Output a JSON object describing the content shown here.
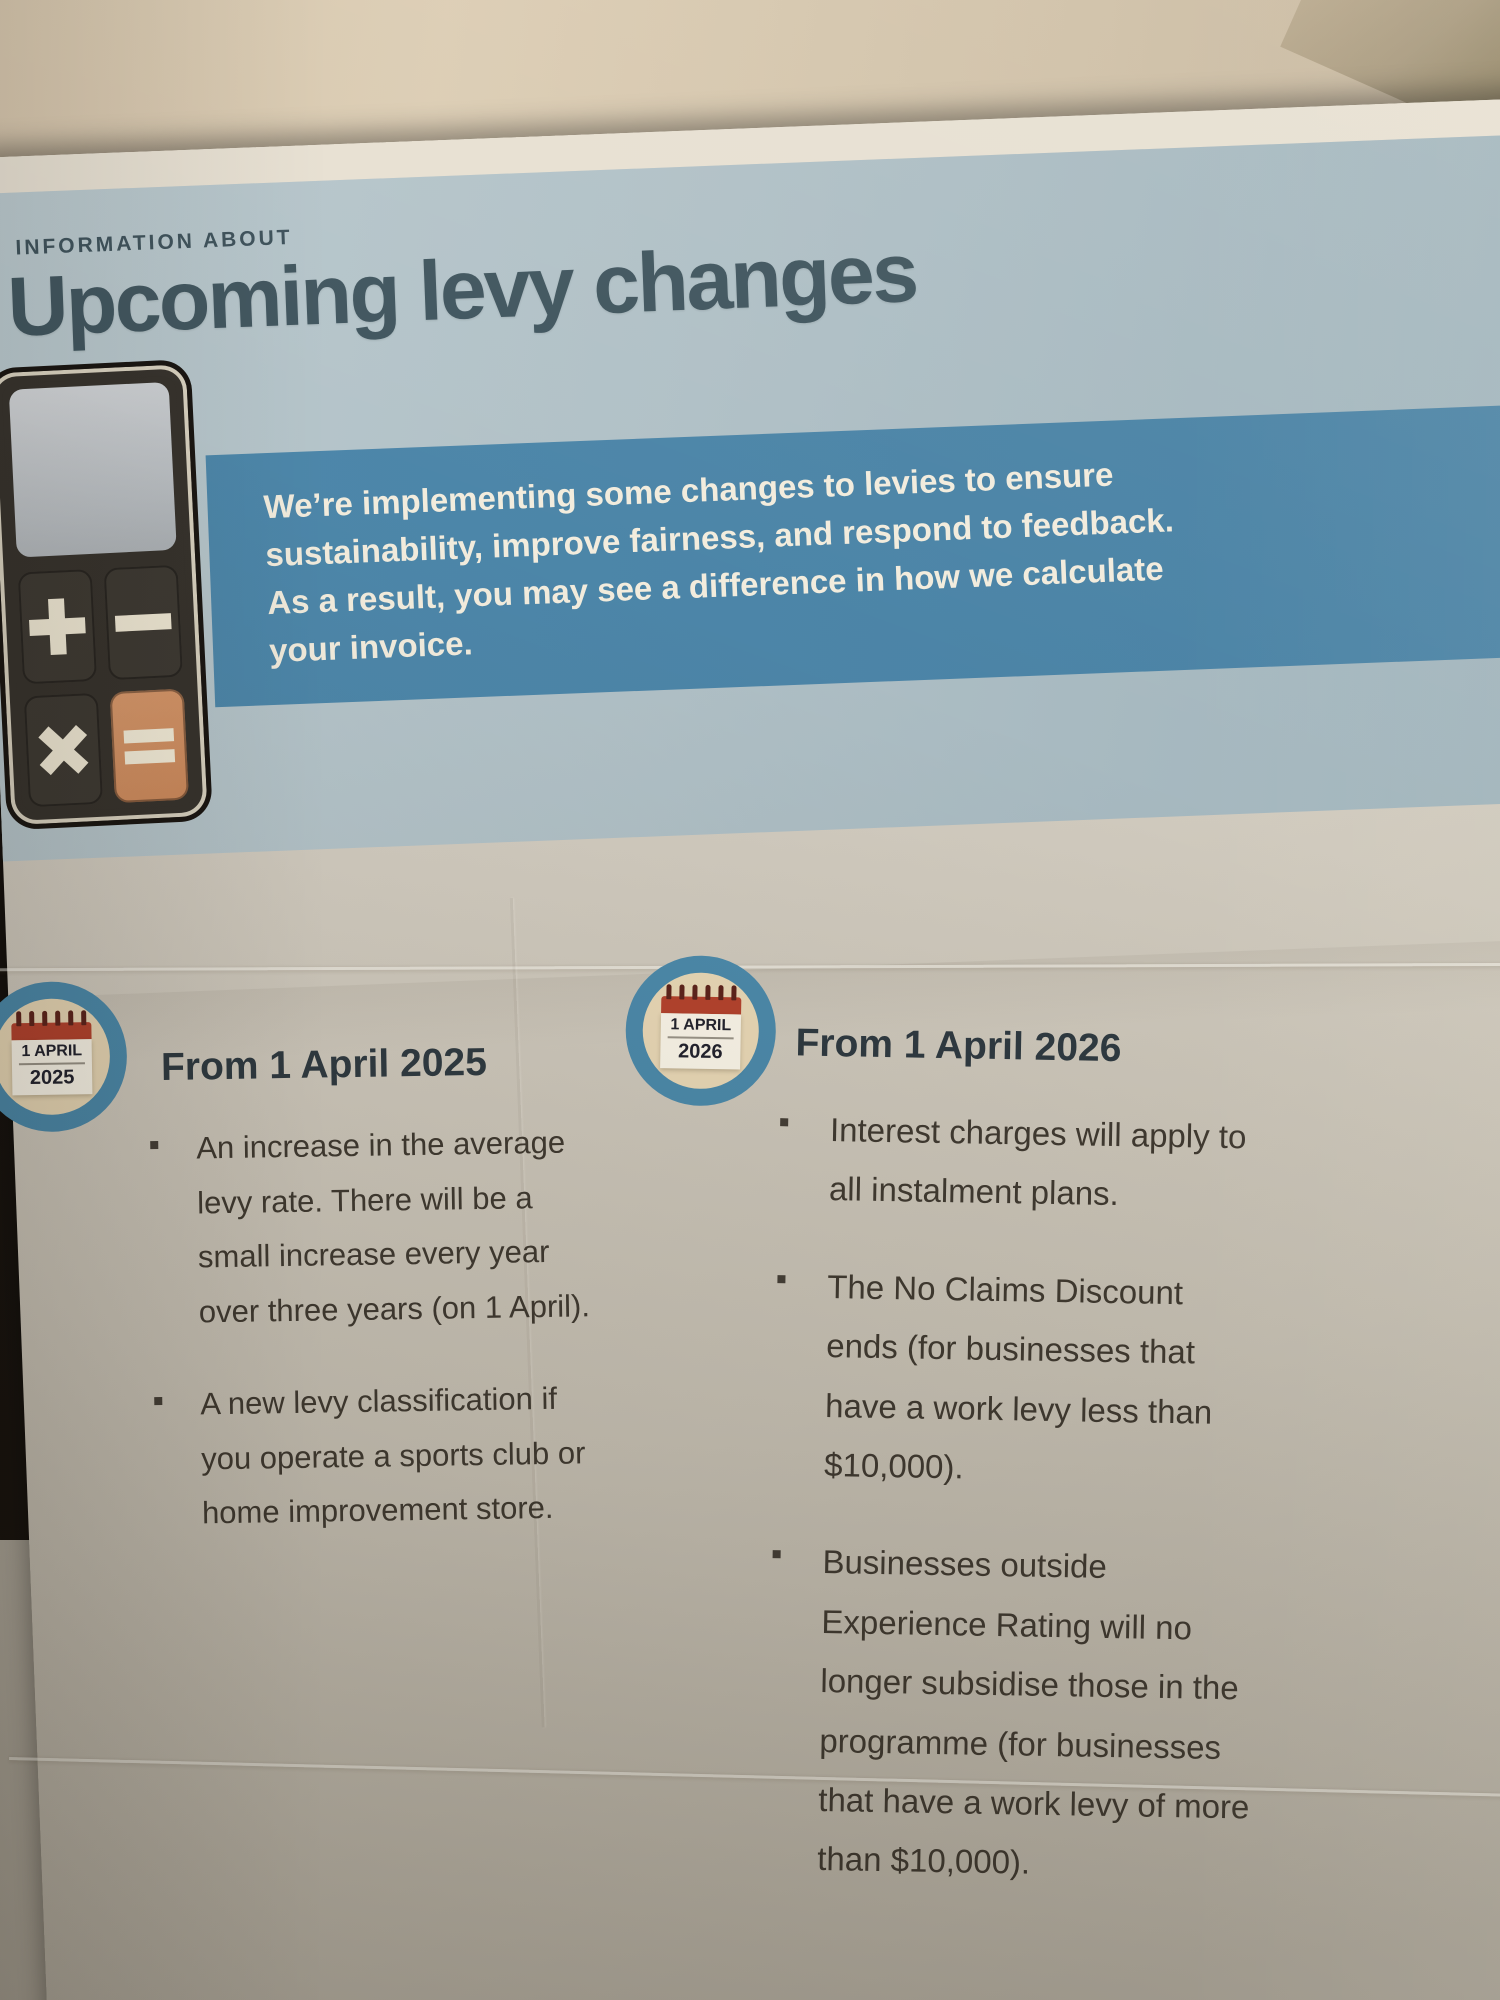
{
  "page": {
    "eyebrow": "INFORMATION ABOUT",
    "title": "Upcoming levy changes",
    "banner": {
      "text": "We’re implementing some changes to levies to ensure\nsustainability, improve fairness, and respond to feedback.\nAs a result, you may see a difference in how we calculate\nyour invoice."
    },
    "calculator_icon": {
      "keys": [
        "plus",
        "minus",
        "multiply",
        "equals"
      ]
    },
    "columns": [
      {
        "calendar": {
          "day_label": "1 APRIL",
          "year": "2025"
        },
        "heading": "From 1 April 2025",
        "bullets": [
          "An increase in the average\nlevy rate. There will be a\nsmall increase every year\nover three years (on 1 April).",
          "A new levy classification if\nyou operate a sports club or\nhome improvement store."
        ]
      },
      {
        "calendar": {
          "day_label": "1 APRIL",
          "year": "2026"
        },
        "heading": "From 1 April 2026",
        "bullets": [
          "Interest charges will apply to\nall instalment plans.",
          "The No Claims Discount\nends (for businesses that\nhave a work levy less than\n$10,000).",
          "Businesses outside\nExperience Rating will no\nlonger subsidise those in the\nprogramme (for businesses\nthat have a work levy of more\nthan $10,000)."
        ]
      }
    ],
    "colors": {
      "banner_blue": "#4d87aa",
      "header_blue_gray": "#b0c0c6",
      "title_teal": "#41565f",
      "paper": "#ccc6ba",
      "cream_sheet": "#d5c5ac",
      "calendar_ring_blue": "#4c8aab",
      "calendar_red": "#b5432e",
      "calculator_orange": "#d28f63",
      "body_text": "#403a31"
    }
  }
}
